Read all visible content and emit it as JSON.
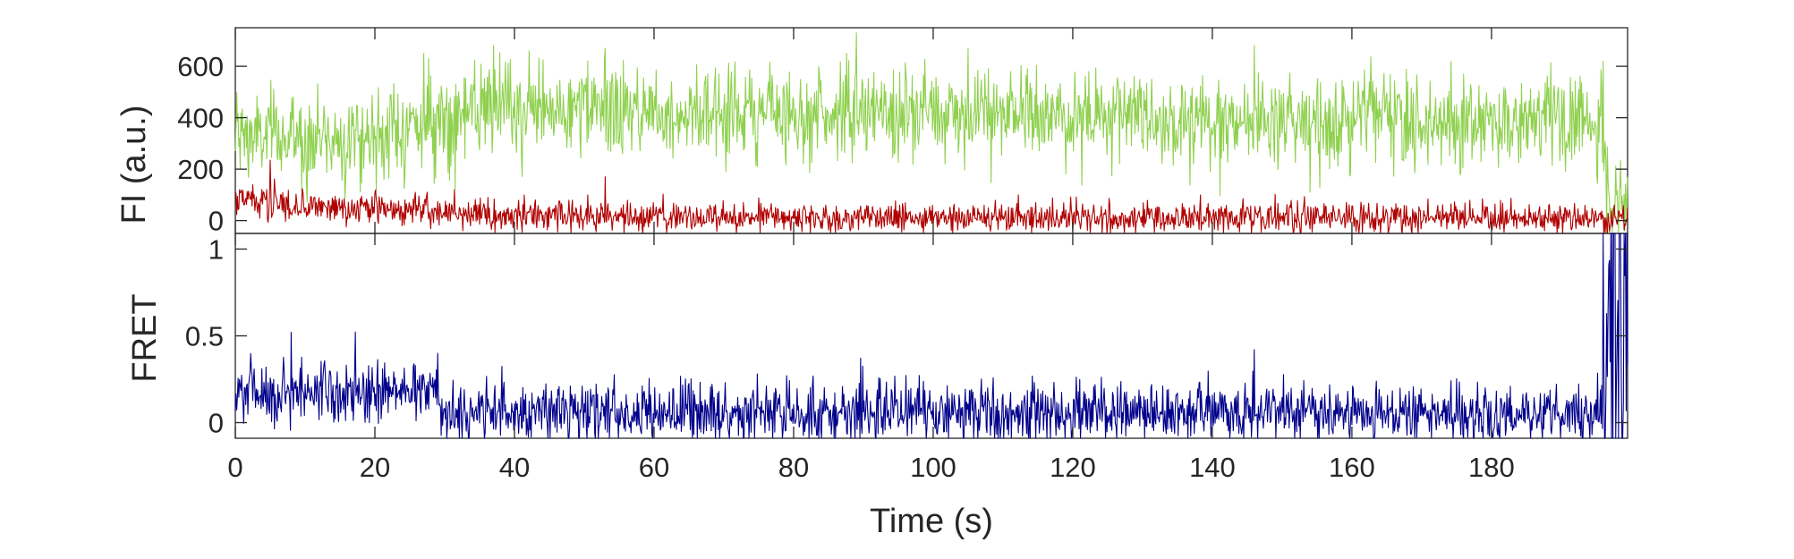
{
  "chart_data": [
    {
      "type": "line",
      "panel": "top",
      "ylabel": "FI (a.u.)",
      "ylim": [
        -50,
        750
      ],
      "xlim": [
        0,
        199.5
      ],
      "yticks": [
        0,
        200,
        400,
        600
      ],
      "ytick_labels": [
        "0",
        "200",
        "400",
        "600"
      ],
      "grid": false,
      "x_resolution_s": 0.1,
      "series": [
        {
          "color": "#8fd14f",
          "x_start": 0,
          "x_end": 199.5,
          "mean_profile": [
            [
              0,
              330
            ],
            [
              10,
              320
            ],
            [
              20,
              330
            ],
            [
              30,
              400
            ],
            [
              40,
              430
            ],
            [
              90,
              420
            ],
            [
              140,
              400
            ],
            [
              196,
              390
            ],
            [
              197,
              60
            ],
            [
              199.5,
              30
            ]
          ],
          "noise_sd": 90,
          "peaks": [
            [
              5.5,
              510
            ],
            [
              27,
              650
            ],
            [
              37,
              680
            ],
            [
              53,
              670
            ],
            [
              89,
              730
            ],
            [
              105,
              670
            ],
            [
              146,
              680
            ],
            [
              196,
              620
            ]
          ]
        },
        {
          "color": "#b00000",
          "x_start": 0,
          "x_end": 199.5,
          "mean_profile": [
            [
              0,
              80
            ],
            [
              10,
              60
            ],
            [
              20,
              45
            ],
            [
              30,
              30
            ],
            [
              40,
              20
            ],
            [
              70,
              10
            ],
            [
              120,
              15
            ],
            [
              199.5,
              10
            ]
          ],
          "noise_sd": 30,
          "peaks": [
            [
              5,
              235
            ],
            [
              53,
              170
            ]
          ]
        }
      ]
    },
    {
      "type": "line",
      "panel": "bottom",
      "xlabel": "Time (s)",
      "ylabel": "FRET",
      "ylim": [
        -0.09,
        1.09
      ],
      "xlim": [
        0,
        199.5
      ],
      "yticks": [
        0,
        0.5,
        1
      ],
      "ytick_labels": [
        "0",
        "0.5",
        "1"
      ],
      "xticks": [
        0,
        20,
        40,
        60,
        80,
        100,
        120,
        140,
        160,
        180
      ],
      "xtick_labels": [
        "0",
        "20",
        "40",
        "60",
        "80",
        "100",
        "120",
        "140",
        "160",
        "180"
      ],
      "grid": false,
      "x_resolution_s": 0.1,
      "series": [
        {
          "color": "#00008b",
          "x_start": 0,
          "x_end": 199.5,
          "mean_profile": [
            [
              0,
              0.18
            ],
            [
              28,
              0.18
            ],
            [
              30,
              0.06
            ],
            [
              40,
              0.06
            ],
            [
              196,
              0.05
            ]
          ],
          "noise_sd": 0.09,
          "peaks": [
            [
              8,
              0.52
            ],
            [
              29,
              0.4
            ],
            [
              146,
              0.42
            ]
          ],
          "saturated_interval": [
            196,
            199.5
          ]
        }
      ]
    }
  ]
}
